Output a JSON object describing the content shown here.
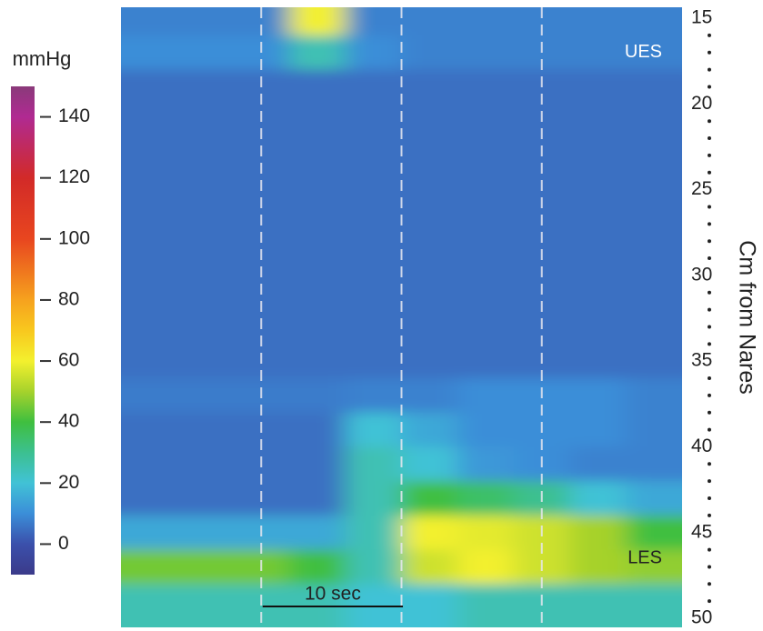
{
  "chart_data": {
    "type": "heatmap",
    "colorbar_title": "mmHg",
    "y_label": "Cm from Nares",
    "annotations": [
      {
        "text": "UES",
        "y": 17
      },
      {
        "text": "LES",
        "y": 46.5
      }
    ],
    "scale_bar": {
      "label": "10 sec",
      "value": 10
    },
    "markers": [
      10,
      20,
      30
    ],
    "xlim": [
      0,
      40
    ],
    "ylim": [
      14.36,
      50.53
    ],
    "yticks": [
      15,
      20,
      25,
      30,
      35,
      40,
      45,
      50
    ],
    "yminorticks": [
      16,
      17,
      18,
      19,
      21,
      22,
      23,
      24,
      26,
      27,
      28,
      29,
      31,
      32,
      33,
      34,
      36,
      37,
      38,
      39,
      41,
      42,
      43,
      44,
      46,
      47,
      48,
      49
    ],
    "clim": [
      -10,
      150
    ],
    "cticks": [
      0,
      20,
      40,
      60,
      80,
      100,
      120,
      140
    ],
    "colorscale": [
      [
        -10,
        "#3b3a8a"
      ],
      [
        0,
        "#3b50ab"
      ],
      [
        10,
        "#3b8ed8"
      ],
      [
        20,
        "#41c2d6"
      ],
      [
        30,
        "#3cc090"
      ],
      [
        40,
        "#3fbf3f"
      ],
      [
        50,
        "#a6d22c"
      ],
      [
        60,
        "#f3f02e"
      ],
      [
        70,
        "#f8c81e"
      ],
      [
        80,
        "#f6a21e"
      ],
      [
        100,
        "#e8461f"
      ],
      [
        120,
        "#d22a28"
      ],
      [
        140,
        "#b02a92"
      ],
      [
        150,
        "#8a3a7a"
      ]
    ],
    "x": [
      2,
      6,
      10,
      14,
      18,
      22,
      26,
      30,
      34,
      38
    ],
    "y": [
      15,
      17,
      19,
      21,
      23,
      25,
      27,
      29,
      31,
      33,
      35,
      37,
      39,
      41,
      43,
      45,
      47,
      49
    ],
    "z": [
      [
        8,
        8,
        8,
        60,
        8,
        8,
        8,
        8,
        8,
        8
      ],
      [
        10,
        10,
        10,
        25,
        10,
        8,
        8,
        8,
        8,
        8
      ],
      [
        5,
        5,
        5,
        5,
        5,
        5,
        5,
        5,
        5,
        5
      ],
      [
        5,
        5,
        5,
        5,
        5,
        5,
        5,
        5,
        5,
        5
      ],
      [
        5,
        5,
        5,
        5,
        5,
        5,
        5,
        5,
        5,
        5
      ],
      [
        5,
        5,
        5,
        5,
        5,
        5,
        5,
        5,
        5,
        5
      ],
      [
        5,
        5,
        5,
        5,
        5,
        5,
        5,
        5,
        5,
        5
      ],
      [
        5,
        5,
        5,
        5,
        5,
        5,
        5,
        5,
        5,
        5
      ],
      [
        5,
        5,
        5,
        5,
        5,
        5,
        5,
        5,
        5,
        5
      ],
      [
        5,
        5,
        5,
        5,
        5,
        5,
        5,
        5,
        5,
        5
      ],
      [
        5,
        5,
        5,
        5,
        5,
        5,
        5,
        5,
        5,
        5
      ],
      [
        7,
        7,
        7,
        7,
        8,
        8,
        10,
        10,
        10,
        8
      ],
      [
        5,
        5,
        5,
        5,
        20,
        15,
        10,
        10,
        10,
        8
      ],
      [
        5,
        5,
        5,
        5,
        25,
        20,
        12,
        10,
        8,
        8
      ],
      [
        5,
        5,
        5,
        5,
        25,
        40,
        35,
        30,
        20,
        15
      ],
      [
        15,
        15,
        15,
        15,
        25,
        60,
        58,
        55,
        50,
        40
      ],
      [
        45,
        45,
        45,
        40,
        25,
        55,
        60,
        55,
        50,
        48
      ],
      [
        25,
        25,
        25,
        25,
        20,
        20,
        25,
        25,
        25,
        25
      ]
    ]
  }
}
